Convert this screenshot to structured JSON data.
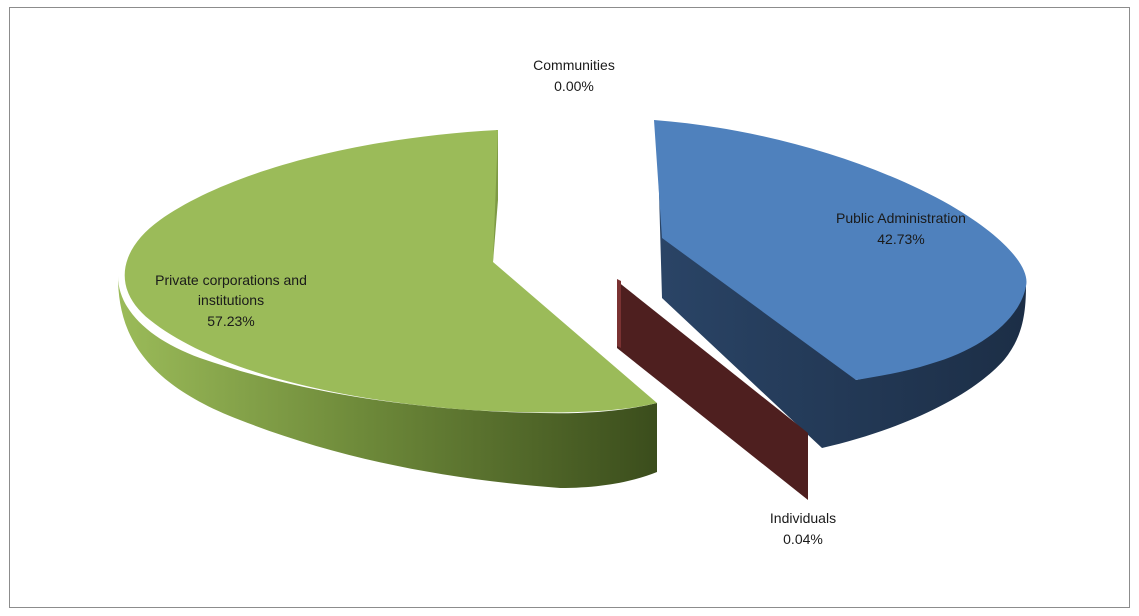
{
  "chart_data": {
    "type": "pie",
    "title": "",
    "slices": [
      {
        "label": "Public Administration",
        "value": 42.73,
        "value_label": "42.73%",
        "color": "#4F81BD",
        "side_color": "#1F3350"
      },
      {
        "label": "Individuals",
        "value": 0.04,
        "value_label": "0.04%",
        "color": "#6B2A2A",
        "side_color": "#4A1E1E"
      },
      {
        "label": "Private corporations and institutions",
        "value": 57.23,
        "value_label": "57.23%",
        "color": "#9BBB59",
        "side_color": "#4F6A2A"
      },
      {
        "label": "Communities",
        "value": 0.0,
        "value_label": "0.00%",
        "color": "#8064A2",
        "side_color": "#4A3A60"
      }
    ],
    "style": "3d-exploded",
    "legend": "none"
  }
}
